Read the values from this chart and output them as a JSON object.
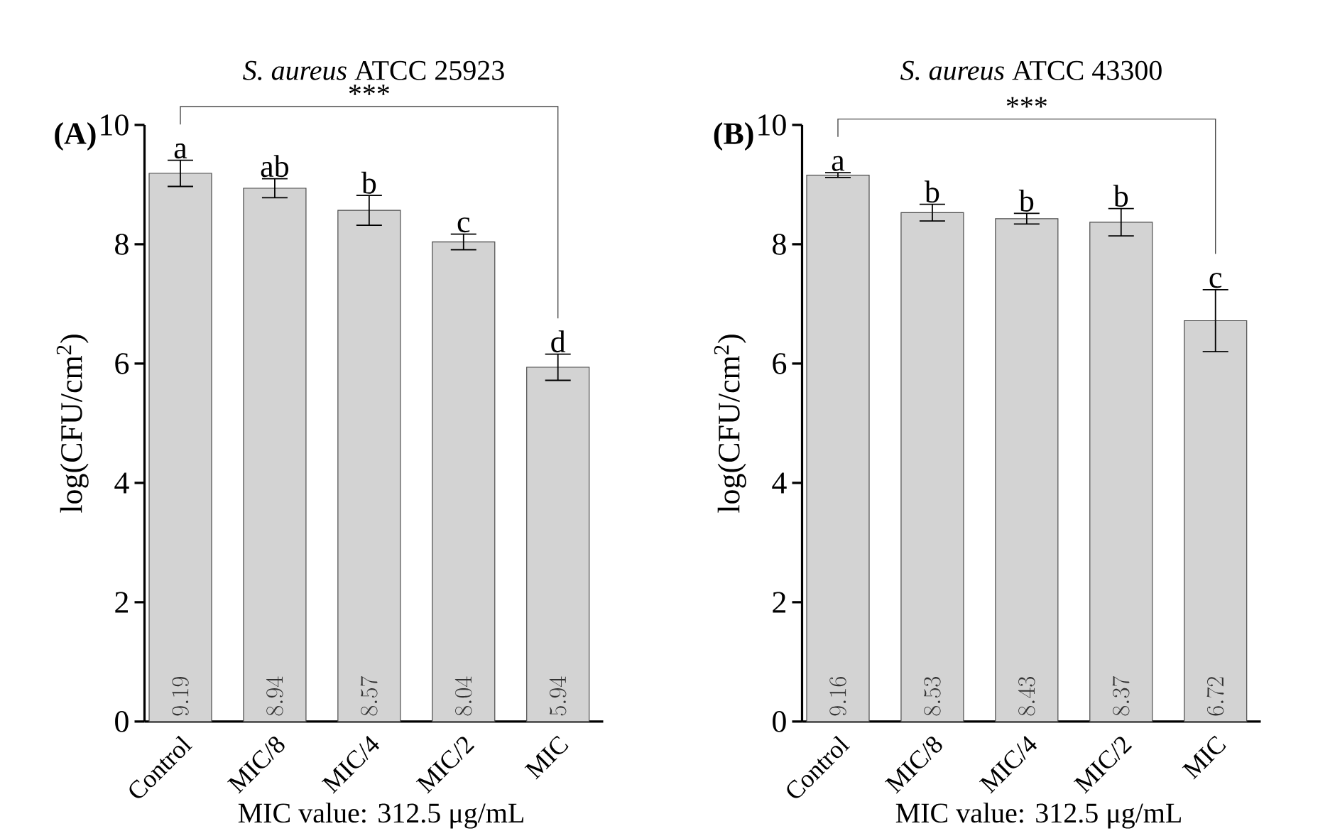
{
  "chart_data": [
    {
      "type": "bar",
      "title": "*S. aureus* ATCC 25923",
      "ylabel": "log(CFU/cm$^{2}$)",
      "categories": [
        "Control",
        "MIC/8",
        "MIC/4",
        "MIC/2",
        "MIC"
      ],
      "values": [
        9.19,
        8.94,
        8.57,
        8.04,
        5.94
      ],
      "errors": [
        0.22,
        0.16,
        0.25,
        0.13,
        0.22
      ],
      "color": "#d3d3d3",
      "ylim": [
        0,
        10
      ],
      "yticks": [
        0,
        2,
        4,
        6,
        8,
        10
      ],
      "data_labels": true,
      "annotations": [
        {
          "text": "a",
          "x": "Control",
          "y": 9.41
        },
        {
          "text": "ab",
          "x": "MIC/8",
          "y": 9.1
        },
        {
          "text": "b",
          "x": "MIC/4",
          "y": 8.82
        },
        {
          "text": "c",
          "x": "MIC/2",
          "y": 8.17
        },
        {
          "text": "d",
          "x": "MIC",
          "y": 6.16
        },
        "***",
        "(A)",
        "MIC value: 312.5 μg/mL"
      ]
    },
    {
      "type": "bar",
      "title": "*S. aureus* ATCC 43300",
      "ylabel": "log(CFU/cm$^{2}$)",
      "categories": [
        "Control",
        "MIC/8",
        "MIC/4",
        "MIC/2",
        "MIC"
      ],
      "values": [
        9.16,
        8.53,
        8.43,
        8.37,
        6.72
      ],
      "errors": [
        0.04,
        0.14,
        0.09,
        0.23,
        0.52
      ],
      "color": "#d3d3d3",
      "ylim": [
        0,
        10
      ],
      "yticks": [
        0,
        2,
        4,
        6,
        8,
        10
      ],
      "data_labels": true,
      "annotations": [
        {
          "text": "a",
          "x": "Control",
          "y": 9.2
        },
        {
          "text": "b",
          "x": "MIC/8",
          "y": 8.67
        },
        {
          "text": "b",
          "x": "MIC/4",
          "y": 8.52
        },
        {
          "text": "b",
          "x": "MIC/2",
          "y": 8.6
        },
        {
          "text": "c",
          "x": "MIC",
          "y": 7.24
        },
        "***",
        "(B)",
        "MIC value: 312.5 μg/mL"
      ]
    }
  ]
}
